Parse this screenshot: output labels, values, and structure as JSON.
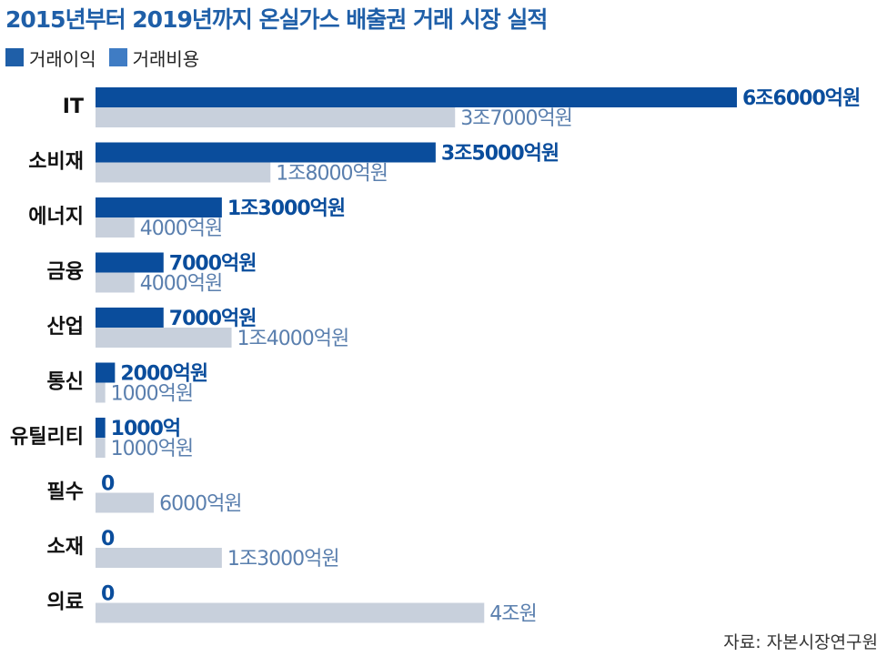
{
  "title": "2015년부터 2019년까지 온실가스 배출권 거래 시장 실적",
  "source": "자료: 자본시장연구원",
  "colors": {
    "profit": "#0a4d9c",
    "cost": "#c8d0dc",
    "cost_label": "#5a7fae",
    "title": "#1f5fa8"
  },
  "chart_data": {
    "type": "bar",
    "orientation": "horizontal",
    "unit": "억원",
    "categories": [
      "IT",
      "소비재",
      "에너지",
      "금융",
      "산업",
      "통신",
      "유틸리티",
      "필수",
      "소재",
      "의료"
    ],
    "series": [
      {
        "name": "거래이익",
        "values": [
          66000,
          35000,
          13000,
          7000,
          7000,
          2000,
          1000,
          0,
          0,
          0
        ],
        "labels": [
          "6조6000억원",
          "3조5000억원",
          "1조3000억원",
          "7000억원",
          "7000억원",
          "2000억원",
          "1000억",
          "0",
          "0",
          "0"
        ]
      },
      {
        "name": "거래비용",
        "values": [
          37000,
          18000,
          4000,
          4000,
          14000,
          1000,
          1000,
          6000,
          13000,
          40000
        ],
        "labels": [
          "3조7000억원",
          "1조8000억원",
          "4000억원",
          "4000억원",
          "1조4000억원",
          "1000억원",
          "1000억원",
          "6000억원",
          "1조3000억원",
          "4조원"
        ]
      }
    ]
  }
}
